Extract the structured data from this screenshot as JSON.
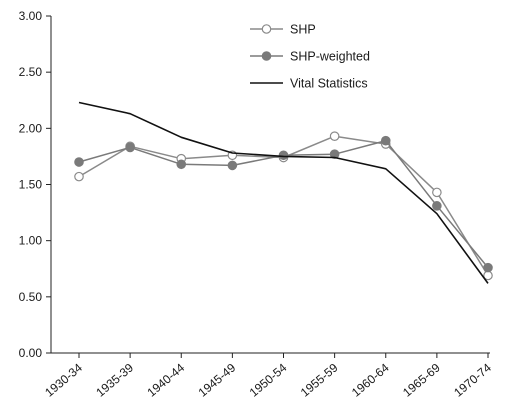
{
  "chart_data": {
    "type": "line",
    "title": "",
    "xlabel": "",
    "ylabel": "",
    "ylim": [
      0,
      3
    ],
    "grid": false,
    "legend_position": "top-right",
    "categories": [
      "1930-34",
      "1935-39",
      "1940-44",
      "1945-49",
      "1950-54",
      "1955-59",
      "1960-64",
      "1965-69",
      "1970-74"
    ],
    "y_ticks": [
      "0.00",
      "0.50",
      "1.00",
      "1.50",
      "2.00",
      "2.50",
      "3.00"
    ],
    "series": [
      {
        "name": "SHP",
        "values": [
          1.57,
          1.84,
          1.73,
          1.76,
          1.74,
          1.93,
          1.86,
          1.43,
          0.69
        ],
        "color": "#8a8a8a",
        "marker": "open-circle"
      },
      {
        "name": "SHP-weighted",
        "values": [
          1.7,
          1.83,
          1.68,
          1.67,
          1.76,
          1.77,
          1.89,
          1.31,
          0.76
        ],
        "color": "#7a7a7a",
        "marker": "filled-circle"
      },
      {
        "name": "Vital Statistics",
        "values": [
          2.23,
          2.13,
          1.92,
          1.78,
          1.75,
          1.74,
          1.64,
          1.24,
          0.62
        ],
        "color": "#111111",
        "marker": "none"
      }
    ]
  }
}
